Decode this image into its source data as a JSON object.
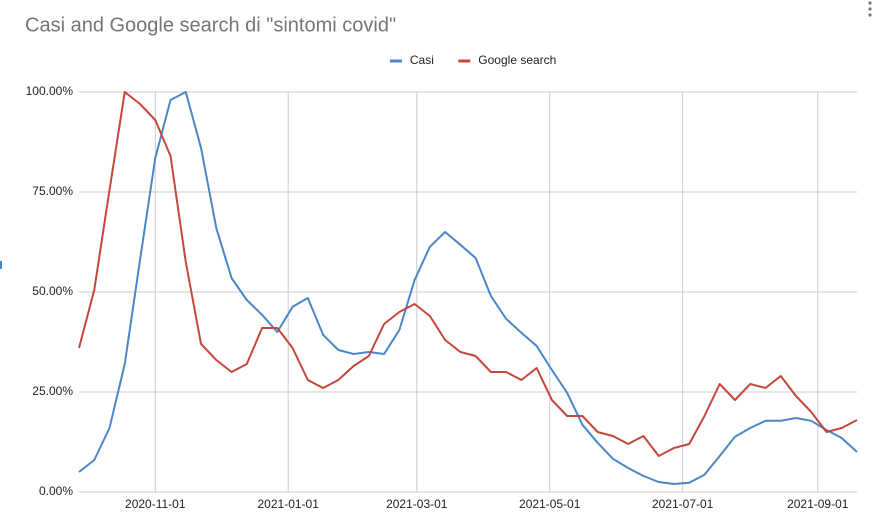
{
  "chart_data": {
    "type": "line",
    "title": "Casi and Google search di \"sintomi covid\"",
    "x": [
      "2020-09-27",
      "2020-10-04",
      "2020-10-11",
      "2020-10-18",
      "2020-10-25",
      "2020-11-01",
      "2020-11-08",
      "2020-11-15",
      "2020-11-22",
      "2020-11-29",
      "2020-12-06",
      "2020-12-13",
      "2020-12-20",
      "2020-12-27",
      "2021-01-03",
      "2021-01-10",
      "2021-01-17",
      "2021-01-24",
      "2021-01-31",
      "2021-02-07",
      "2021-02-14",
      "2021-02-21",
      "2021-02-28",
      "2021-03-07",
      "2021-03-14",
      "2021-03-21",
      "2021-03-28",
      "2021-04-04",
      "2021-04-11",
      "2021-04-18",
      "2021-04-25",
      "2021-05-02",
      "2021-05-09",
      "2021-05-16",
      "2021-05-23",
      "2021-05-30",
      "2021-06-06",
      "2021-06-13",
      "2021-06-20",
      "2021-06-27",
      "2021-07-04",
      "2021-07-11",
      "2021-07-18",
      "2021-07-25",
      "2021-08-01",
      "2021-08-08",
      "2021-08-15",
      "2021-08-22",
      "2021-08-29",
      "2021-09-05",
      "2021-09-12",
      "2021-09-19"
    ],
    "series": [
      {
        "name": "Casi",
        "color": "#4a86c8",
        "values": [
          5,
          8,
          16,
          32,
          58,
          83.5,
          98,
          100,
          86,
          66,
          53.5,
          48,
          44.3,
          40,
          46.3,
          48.5,
          39.3,
          35.5,
          34.5,
          35,
          34.5,
          40.5,
          53,
          61.3,
          65,
          61.8,
          58.5,
          49,
          43.3,
          39.8,
          36.5,
          30.5,
          24.8,
          16.8,
          12.3,
          8.3,
          6,
          4,
          2.5,
          2,
          2.3,
          4.3,
          9,
          13.8,
          16,
          17.8,
          17.8,
          18.5,
          17.8,
          15.5,
          13.5,
          10
        ]
      },
      {
        "name": "Google search",
        "color": "#c5473c",
        "values": [
          36,
          50.5,
          75.5,
          100,
          97,
          93,
          84,
          57.5,
          37,
          33,
          30,
          32,
          41,
          41,
          36,
          28,
          26,
          28,
          31.5,
          34,
          42,
          45,
          47,
          44,
          38,
          35,
          34,
          30,
          30,
          28,
          31,
          23,
          19,
          19,
          15,
          14,
          12,
          14,
          9,
          11,
          12,
          19,
          27,
          23,
          27,
          26,
          29,
          24,
          20,
          15,
          16,
          18
        ]
      }
    ],
    "xlim": [
      "2020-09-27",
      "2021-09-19"
    ],
    "xticks": [
      "2020-11-01",
      "2021-01-01",
      "2021-03-01",
      "2021-05-01",
      "2021-07-01",
      "2021-09-01"
    ],
    "ylim": [
      0,
      100
    ],
    "yticks": [
      {
        "value": 0,
        "label": "0.00%"
      },
      {
        "value": 25,
        "label": "25.00%"
      },
      {
        "value": 50,
        "label": "50.00%"
      },
      {
        "value": 75,
        "label": "75.00%"
      },
      {
        "value": 100,
        "label": "100.00%"
      }
    ],
    "grid": true,
    "legend": "top"
  }
}
